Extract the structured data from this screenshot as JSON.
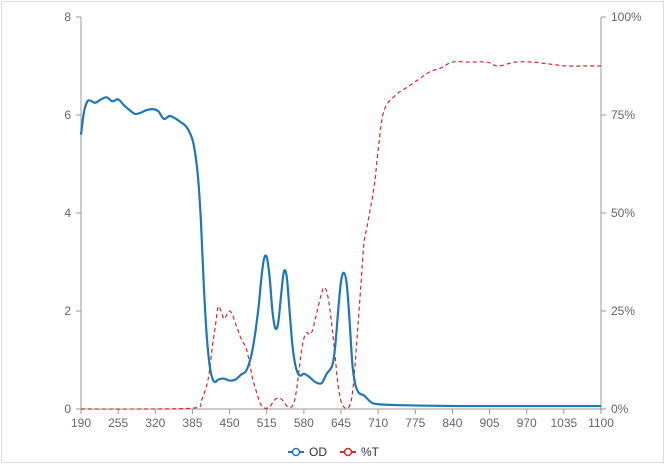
{
  "chart_data": {
    "type": "line",
    "x_range": [
      190,
      1100
    ],
    "x_ticks": [
      190,
      255,
      320,
      385,
      450,
      515,
      580,
      645,
      710,
      775,
      840,
      905,
      970,
      1035,
      1100
    ],
    "y_left": {
      "range": [
        0,
        8
      ],
      "ticks": [
        "0",
        "2",
        "4",
        "6",
        "8"
      ]
    },
    "y_right": {
      "range": [
        0,
        100
      ],
      "ticks": [
        "0%",
        "25%",
        "50%",
        "75%",
        "100%"
      ]
    },
    "grid": false,
    "legend_position": "bottom-center",
    "colors": {
      "od": "#1f77b4",
      "t": "#d62728",
      "axis": "#999999"
    },
    "series": [
      {
        "name": "OD",
        "axis": "left",
        "style": "solid",
        "x": [
          190,
          195,
          200,
          205,
          215,
          225,
          235,
          245,
          255,
          265,
          275,
          285,
          295,
          305,
          315,
          325,
          335,
          345,
          355,
          365,
          375,
          385,
          390,
          395,
          400,
          405,
          410,
          415,
          420,
          425,
          430,
          440,
          450,
          460,
          470,
          480,
          490,
          500,
          505,
          510,
          515,
          520,
          525,
          530,
          535,
          540,
          545,
          550,
          555,
          560,
          565,
          570,
          575,
          580,
          590,
          600,
          610,
          615,
          620,
          630,
          635,
          640,
          645,
          650,
          655,
          660,
          665,
          670,
          675,
          680,
          685,
          690,
          700,
          710,
          720,
          740,
          780,
          850,
          950,
          1050,
          1100
        ],
        "y": [
          5.6,
          6.05,
          6.25,
          6.3,
          6.25,
          6.32,
          6.36,
          6.28,
          6.32,
          6.2,
          6.1,
          6.02,
          6.05,
          6.1,
          6.12,
          6.08,
          5.92,
          5.98,
          5.93,
          5.85,
          5.75,
          5.5,
          5.2,
          4.7,
          3.8,
          2.5,
          1.5,
          0.9,
          0.62,
          0.55,
          0.6,
          0.62,
          0.58,
          0.6,
          0.7,
          0.8,
          1.2,
          2.0,
          2.6,
          3.05,
          3.1,
          2.7,
          2.0,
          1.65,
          1.75,
          2.3,
          2.8,
          2.7,
          2.0,
          1.3,
          0.9,
          0.72,
          0.68,
          0.72,
          0.65,
          0.55,
          0.52,
          0.6,
          0.72,
          0.9,
          1.3,
          2.0,
          2.6,
          2.78,
          2.55,
          1.8,
          0.9,
          0.5,
          0.35,
          0.3,
          0.28,
          0.22,
          0.12,
          0.1,
          0.09,
          0.08,
          0.07,
          0.06,
          0.06,
          0.06,
          0.06
        ]
      },
      {
        "name": "%T",
        "axis": "right",
        "style": "dashed",
        "x": [
          190,
          300,
          390,
          400,
          410,
          415,
          420,
          425,
          430,
          435,
          440,
          445,
          450,
          455,
          460,
          465,
          470,
          480,
          490,
          500,
          505,
          510,
          515,
          520,
          525,
          530,
          535,
          540,
          545,
          550,
          555,
          560,
          565,
          570,
          575,
          580,
          585,
          590,
          595,
          600,
          605,
          610,
          615,
          620,
          625,
          630,
          635,
          640,
          645,
          650,
          655,
          660,
          665,
          670,
          675,
          680,
          685,
          690,
          695,
          700,
          705,
          710,
          720,
          740,
          760,
          780,
          800,
          820,
          840,
          870,
          900,
          920,
          950,
          980,
          1010,
          1040,
          1070,
          1100
        ],
        "y": [
          0,
          0,
          0.3,
          2,
          6,
          10,
          16,
          21,
          26,
          25,
          23,
          24,
          25,
          24,
          22,
          20,
          18,
          15,
          8,
          3,
          1,
          0.3,
          0.2,
          0.5,
          1.5,
          2.5,
          2.8,
          2.6,
          1.8,
          0.8,
          0.4,
          0.8,
          3,
          8,
          14,
          18,
          19.5,
          19,
          20,
          23,
          26,
          29,
          31,
          30,
          26,
          20,
          13,
          6,
          2,
          0.5,
          0.2,
          0.8,
          4,
          12,
          22,
          32,
          42,
          46,
          50,
          54,
          59,
          66,
          76,
          80,
          82,
          84,
          86,
          87,
          88.5,
          88.5,
          88.5,
          87.5,
          88.5,
          88.5,
          88,
          87.5,
          87.5,
          87.5
        ]
      }
    ]
  }
}
